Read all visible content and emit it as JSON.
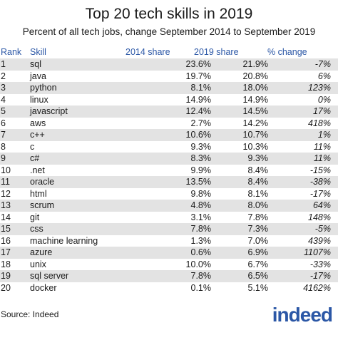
{
  "chart_data": {
    "type": "table",
    "title": "Top 20 tech skills in 2019",
    "subtitle": "Percent of all tech jobs, change September 2014 to September 2019",
    "columns": [
      "Rank",
      "Skill",
      "2014 share",
      "2019 share",
      "% change"
    ],
    "rows": [
      [
        "1",
        "sql",
        "23.6%",
        "21.9%",
        "-7%"
      ],
      [
        "2",
        "java",
        "19.7%",
        "20.8%",
        "6%"
      ],
      [
        "3",
        "python",
        "8.1%",
        "18.0%",
        "123%"
      ],
      [
        "4",
        "linux",
        "14.9%",
        "14.9%",
        "0%"
      ],
      [
        "5",
        "javascript",
        "12.4%",
        "14.5%",
        "17%"
      ],
      [
        "6",
        "aws",
        "2.7%",
        "14.2%",
        "418%"
      ],
      [
        "7",
        "c++",
        "10.6%",
        "10.7%",
        "1%"
      ],
      [
        "8",
        "c",
        "9.3%",
        "10.3%",
        "11%"
      ],
      [
        "9",
        "c#",
        "8.3%",
        "9.3%",
        "11%"
      ],
      [
        "10",
        ".net",
        "9.9%",
        "8.4%",
        "-15%"
      ],
      [
        "11",
        "oracle",
        "13.5%",
        "8.4%",
        "-38%"
      ],
      [
        "12",
        "html",
        "9.8%",
        "8.1%",
        "-17%"
      ],
      [
        "13",
        "scrum",
        "4.8%",
        "8.0%",
        "64%"
      ],
      [
        "14",
        "git",
        "3.1%",
        "7.8%",
        "148%"
      ],
      [
        "15",
        "css",
        "7.8%",
        "7.3%",
        "-5%"
      ],
      [
        "16",
        "machine learning",
        "1.3%",
        "7.0%",
        "439%"
      ],
      [
        "17",
        "azure",
        "0.6%",
        "6.9%",
        "1107%"
      ],
      [
        "18",
        "unix",
        "10.0%",
        "6.7%",
        "-33%"
      ],
      [
        "19",
        "sql server",
        "7.8%",
        "6.5%",
        "-17%"
      ],
      [
        "20",
        "docker",
        "0.1%",
        "5.1%",
        "4162%"
      ]
    ]
  },
  "footer": {
    "source": "Source: Indeed",
    "logo": "indeed"
  },
  "colors": {
    "header_text": "#2b57a6",
    "row_shade": "#e3e3e3",
    "logo": "#2b57a6"
  }
}
